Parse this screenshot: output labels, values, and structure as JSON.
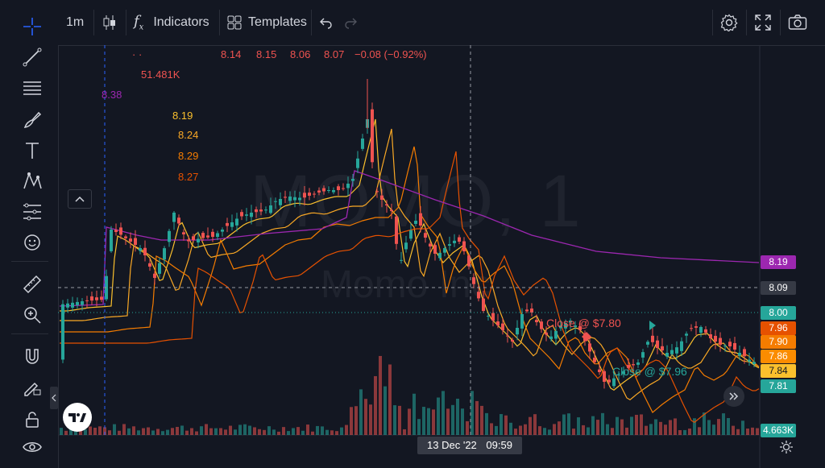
{
  "toolbar": {
    "interval": "1m",
    "indicators_label": "Indicators",
    "templates_label": "Templates"
  },
  "legend": {
    "ohlc": [
      "8.14",
      "8.15",
      "8.06",
      "8.07"
    ],
    "change": "−0.08 (−0.92%)",
    "volume": "51.481K",
    "vwap": "8.38",
    "ma_values": [
      "8.19",
      "8.24",
      "8.29",
      "8.27"
    ]
  },
  "watermark": {
    "symbol": "MOMO, 1",
    "name": "Momo Inc"
  },
  "price_scale": {
    "tags": [
      {
        "value": "8.19",
        "color": "#9c27b0"
      },
      {
        "value": "8.09",
        "color": "#363a45"
      },
      {
        "value": "8.00",
        "color": "#26a69a"
      },
      {
        "value": "7.96",
        "color": "#e65100"
      },
      {
        "value": "7.90",
        "color": "#f57c00"
      },
      {
        "value": "7.86",
        "color": "#fb8c00"
      },
      {
        "value": "7.84",
        "color": "#fbc02d"
      },
      {
        "value": "7.81",
        "color": "#26a69a"
      },
      {
        "value": "4.663K",
        "color": "#26a69a"
      }
    ]
  },
  "crosshair": {
    "date": "13 Dec '22",
    "time": "09:59"
  },
  "orders": {
    "sell_label": "Close @ $7.80",
    "buy_label": "Close @ $7.96"
  },
  "colors": {
    "up": "#26a69a",
    "down": "#ef5350",
    "vwap": "#9c27b0",
    "ma1": "#fbc02d",
    "ma2": "#f57c00",
    "ma3": "#e65100"
  },
  "icons": [
    "crosshair-icon",
    "trendline-icon",
    "fib-icon",
    "brush-icon",
    "text-icon",
    "pattern-icon",
    "forecast-icon",
    "emoji-icon",
    "ruler-icon",
    "zoom-icon",
    "magnet-icon",
    "lock-drawing-icon",
    "lock-icon",
    "eye-icon"
  ]
}
